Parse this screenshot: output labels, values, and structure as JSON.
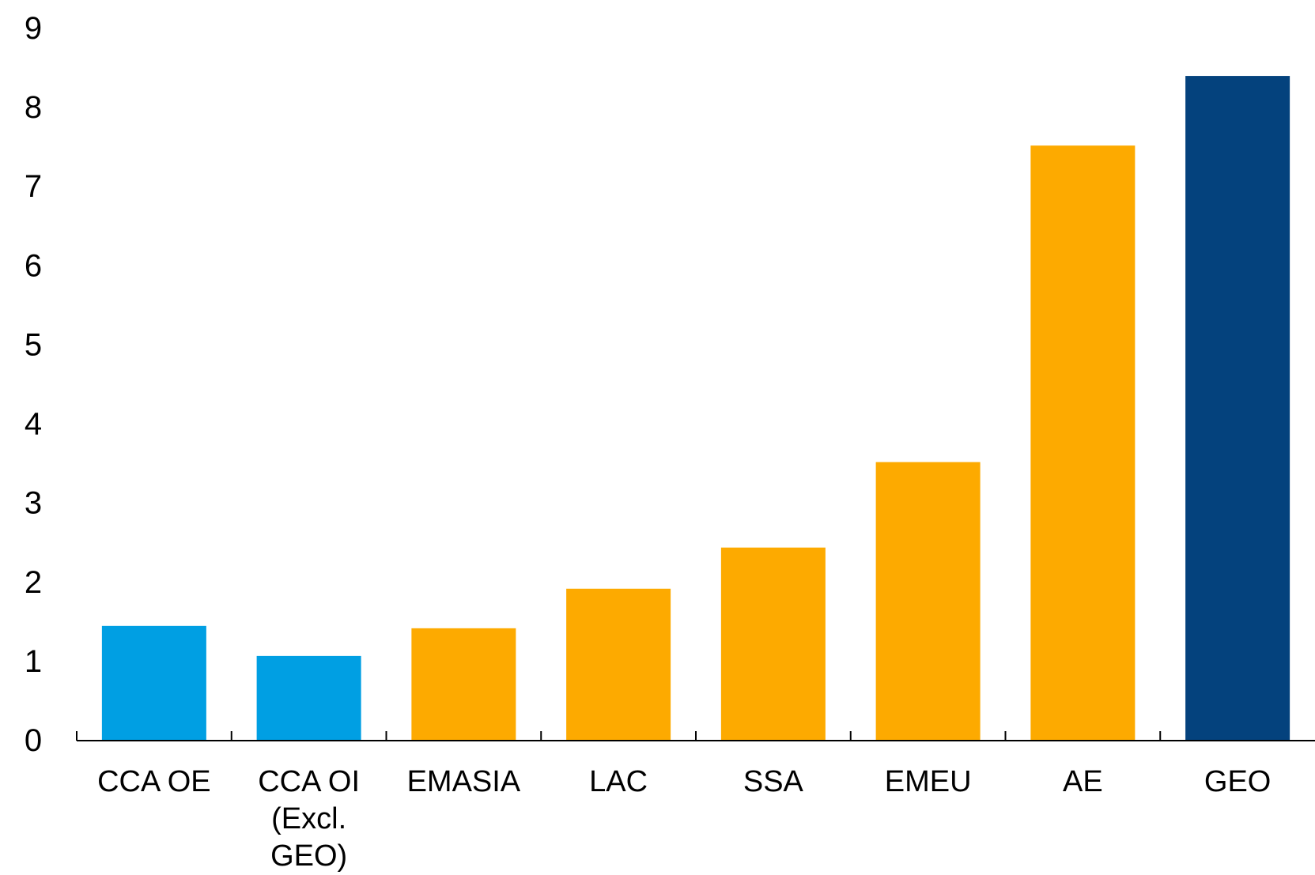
{
  "chart_data": {
    "type": "bar",
    "categories": [
      "CCA OE",
      "CCA OI (Excl. GEO)",
      "EMASIA",
      "LAC",
      "SSA",
      "EMEU",
      "AE",
      "GEO"
    ],
    "category_lines": [
      [
        "CCA OE"
      ],
      [
        "CCA OI",
        "(Excl.",
        "GEO)"
      ],
      [
        "EMASIA"
      ],
      [
        "LAC"
      ],
      [
        "SSA"
      ],
      [
        "EMEU"
      ],
      [
        "AE"
      ],
      [
        "GEO"
      ]
    ],
    "values": [
      1.45,
      1.07,
      1.42,
      1.92,
      2.44,
      3.52,
      7.52,
      8.4
    ],
    "bar_colors": [
      "#009FE3",
      "#009FE3",
      "#FDAA00",
      "#FDAA00",
      "#FDAA00",
      "#FDAA00",
      "#FDAA00",
      "#04427D"
    ],
    "ylim": [
      0,
      9
    ],
    "yticks": [
      "0",
      "1",
      "2",
      "3",
      "4",
      "5",
      "6",
      "7",
      "8",
      "9"
    ],
    "grid": false,
    "legend": "none"
  }
}
